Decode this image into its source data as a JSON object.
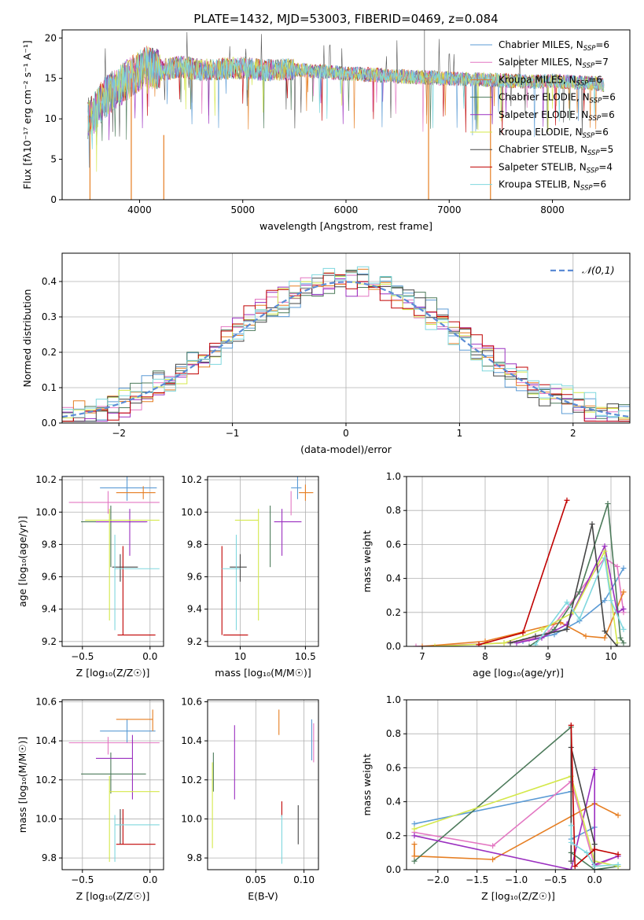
{
  "figure_title": "PLATE=1432, MJD=53003, FIBERID=0469, z=0.084",
  "legend": [
    {
      "label": "Chabrier MILES, N",
      "sub": "SSP",
      "tail": "=6",
      "color": "#5b9bd5"
    },
    {
      "label": "Salpeter MILES, N",
      "sub": "SSP",
      "tail": "=7",
      "color": "#e377c2"
    },
    {
      "label": "Kroupa MILES, N",
      "sub": "SSP",
      "tail": "=6",
      "color": "#e67e22"
    },
    {
      "label": "Chabrier ELODIE, N",
      "sub": "SSP",
      "tail": "=6",
      "color": "#4c7a5a"
    },
    {
      "label": "Salpeter ELODIE, N",
      "sub": "SSP",
      "tail": "=6",
      "color": "#9b30c0"
    },
    {
      "label": "Kroupa ELODIE, N",
      "sub": "SSP",
      "tail": "=6",
      "color": "#d4e84a"
    },
    {
      "label": "Chabrier STELIB, N",
      "sub": "SSP",
      "tail": "=5",
      "color": "#444444"
    },
    {
      "label": "Salpeter STELIB, N",
      "sub": "SSP",
      "tail": "=4",
      "color": "#c00000"
    },
    {
      "label": "Kroupa STELIB, N",
      "sub": "SSP",
      "tail": "=6",
      "color": "#7fd7de"
    }
  ],
  "chart_data": [
    {
      "id": "spectrum",
      "type": "line",
      "xlabel": "wavelength [Angstrom, rest frame]",
      "ylabel": "Flux [fλ10⁻¹⁷ erg cm⁻² s⁻¹ A⁻¹]",
      "xlim": [
        3250,
        8750
      ],
      "ylim": [
        0,
        21
      ],
      "xticks": [
        4000,
        5000,
        6000,
        7000,
        8000
      ],
      "yticks": [
        0,
        5,
        10,
        15,
        20
      ],
      "grid": false,
      "legend_position": "right",
      "flux_anchor_x": [
        3500,
        3550,
        3650,
        3750,
        3850,
        3950,
        4050,
        4200,
        4400,
        4600,
        4800,
        5000,
        5200,
        5400,
        5600,
        5800,
        6000,
        6200,
        6400,
        6600,
        6800,
        7000,
        7200,
        7400,
        7600,
        7800,
        8000,
        8200,
        8400,
        8500
      ],
      "flux_anchor_y": [
        10.0,
        10.5,
        12.5,
        13.5,
        14.5,
        15.5,
        16.5,
        16.0,
        16.5,
        16.0,
        16.2,
        16.3,
        16.0,
        16.1,
        16.0,
        15.8,
        15.6,
        15.5,
        15.3,
        15.2,
        15.1,
        15.0,
        14.9,
        14.8,
        14.7,
        14.6,
        14.7,
        14.5,
        14.4,
        14.2
      ],
      "drop_lines": [
        {
          "x": 3520,
          "y0": 0,
          "y1": 10
        },
        {
          "x": 3920,
          "y0": 0,
          "y1": 15
        },
        {
          "x": 4235,
          "y0": 0,
          "y1": 8
        },
        {
          "x": 6800,
          "y0": 0,
          "y1": 15
        },
        {
          "x": 7400,
          "y0": 0,
          "y1": 14
        }
      ]
    },
    {
      "id": "residual-histogram",
      "type": "bar",
      "xlabel": "(data-model)/error",
      "ylabel": "Normed distribution",
      "xlim": [
        -2.5,
        2.5
      ],
      "ylim": [
        0,
        0.48
      ],
      "xticks": [
        -2,
        -1,
        0,
        1,
        2
      ],
      "yticks": [
        0.0,
        0.1,
        0.2,
        0.3,
        0.4
      ],
      "grid": true,
      "bin_width": 0.1,
      "reference_curve": {
        "name": "𝒩(0,1)",
        "color": "#5b8bd5"
      }
    },
    {
      "id": "age-vs-Z",
      "type": "scatter",
      "xlabel": "Z [log₁₀(Z/Z☉)]",
      "ylabel": "age  [log₁₀(age/yr)]",
      "xlim": [
        -0.65,
        0.1
      ],
      "ylim": [
        9.17,
        10.22
      ],
      "xticks": [
        -0.5,
        0.0
      ],
      "xtick_labels": [
        "−0.5",
        "0.0"
      ],
      "yticks": [
        9.2,
        9.4,
        9.6,
        9.8,
        10.0,
        10.2
      ],
      "grid": true,
      "points": [
        {
          "c": 0,
          "x": -0.17,
          "xe": [
            -0.37,
            0.05
          ],
          "y": 10.15,
          "ye": [
            10.07,
            10.22
          ]
        },
        {
          "c": 1,
          "x": -0.31,
          "xe": [
            -0.6,
            0.07
          ],
          "y": 10.06,
          "ye": [
            9.99,
            10.13
          ]
        },
        {
          "c": 2,
          "x": -0.05,
          "xe": [
            -0.25,
            0.04
          ],
          "y": 10.12,
          "ye": [
            10.08,
            10.16
          ]
        },
        {
          "c": 3,
          "x": -0.29,
          "xe": [
            -0.51,
            -0.03
          ],
          "y": 9.94,
          "ye": [
            9.66,
            10.04
          ]
        },
        {
          "c": 4,
          "x": -0.15,
          "xe": [
            -0.4,
            -0.02
          ],
          "y": 9.94,
          "ye": [
            9.73,
            10.02
          ]
        },
        {
          "c": 5,
          "x": -0.3,
          "xe": [
            -0.48,
            0.07
          ],
          "y": 9.95,
          "ye": [
            9.33,
            10.02
          ]
        },
        {
          "c": 6,
          "x": -0.22,
          "xe": [
            -0.28,
            -0.09
          ],
          "y": 9.66,
          "ye": [
            9.57,
            9.74
          ]
        },
        {
          "c": 7,
          "x": -0.2,
          "xe": [
            -0.24,
            0.04
          ],
          "y": 9.24,
          "ye": [
            9.24,
            9.79
          ]
        },
        {
          "c": 8,
          "x": -0.26,
          "xe": [
            -0.26,
            0.07
          ],
          "y": 9.65,
          "ye": [
            9.27,
            9.86
          ]
        }
      ]
    },
    {
      "id": "age-vs-mass",
      "type": "scatter",
      "xlabel": "mass [log₁₀(M/M☉)]",
      "ylabel": "",
      "xlim": [
        9.75,
        10.6
      ],
      "ylim": [
        9.17,
        10.22
      ],
      "xticks": [
        10.0,
        10.5
      ],
      "yticks": [
        9.2,
        9.4,
        9.6,
        9.8,
        10.0,
        10.2
      ],
      "grid": true,
      "points": [
        {
          "c": 0,
          "x": 10.44,
          "xe": [
            10.39,
            10.47
          ],
          "y": 10.15,
          "ye": [
            10.08,
            10.22
          ]
        },
        {
          "c": 1,
          "x": 10.39,
          "xe": [
            10.39,
            10.39
          ],
          "y": 10.06,
          "ye": [
            9.98,
            10.13
          ]
        },
        {
          "c": 2,
          "x": 10.5,
          "xe": [
            10.45,
            10.56
          ],
          "y": 10.12,
          "ye": [
            10.07,
            10.17
          ]
        },
        {
          "c": 3,
          "x": 10.23,
          "xe": [
            10.23,
            10.23
          ],
          "y": 9.94,
          "ye": [
            9.66,
            10.04
          ]
        },
        {
          "c": 4,
          "x": 10.32,
          "xe": [
            10.26,
            10.47
          ],
          "y": 9.94,
          "ye": [
            9.73,
            10.02
          ]
        },
        {
          "c": 5,
          "x": 10.14,
          "xe": [
            9.96,
            10.14
          ],
          "y": 9.95,
          "ye": [
            9.33,
            10.02
          ]
        },
        {
          "c": 6,
          "x": 10.0,
          "xe": [
            9.92,
            10.05
          ],
          "y": 9.66,
          "ye": [
            9.57,
            9.74
          ]
        },
        {
          "c": 7,
          "x": 9.86,
          "xe": [
            9.87,
            10.06
          ],
          "y": 9.24,
          "ye": [
            9.24,
            9.79
          ]
        },
        {
          "c": 8,
          "x": 9.97,
          "xe": [
            9.86,
            10.0
          ],
          "y": 9.65,
          "ye": [
            9.27,
            9.86
          ]
        }
      ]
    },
    {
      "id": "mass-weight-vs-age",
      "type": "line",
      "xlabel": "age  [log₁₀(age/yr)]",
      "ylabel": "mass weight",
      "xlim": [
        6.75,
        10.3
      ],
      "ylim": [
        0,
        1.0
      ],
      "xticks": [
        7,
        8,
        9,
        10
      ],
      "yticks": [
        0.0,
        0.2,
        0.4,
        0.6,
        0.8,
        1.0
      ],
      "grid": true,
      "series": [
        {
          "c": 0,
          "x": [
            8.6,
            9.1,
            9.5,
            9.9,
            10.2
          ],
          "y": [
            0.03,
            0.07,
            0.15,
            0.27,
            0.46
          ]
        },
        {
          "c": 1,
          "x": [
            6.9,
            8.3,
            8.7,
            9.0,
            9.9,
            10.1,
            10.2
          ],
          "y": [
            0.0,
            0.02,
            0.04,
            0.08,
            0.52,
            0.47,
            0.2
          ]
        },
        {
          "c": 2,
          "x": [
            7.0,
            8.0,
            9.2,
            9.6,
            9.9,
            10.2
          ],
          "y": [
            0.0,
            0.03,
            0.14,
            0.06,
            0.05,
            0.32
          ]
        },
        {
          "c": 3,
          "x": [
            8.7,
            9.1,
            9.5,
            9.95,
            10.15,
            10.2
          ],
          "y": [
            0.0,
            0.1,
            0.32,
            0.84,
            0.05,
            0.02
          ]
        },
        {
          "c": 4,
          "x": [
            8.5,
            8.9,
            9.3,
            9.9,
            10.1,
            10.2
          ],
          "y": [
            0.02,
            0.05,
            0.13,
            0.59,
            0.2,
            0.22
          ]
        },
        {
          "c": 5,
          "x": [
            7.2,
            8.3,
            8.9,
            9.4,
            9.9,
            10.1
          ],
          "y": [
            0.0,
            0.02,
            0.1,
            0.2,
            0.56,
            0.02
          ]
        },
        {
          "c": 6,
          "x": [
            8.4,
            8.8,
            9.3,
            9.7,
            9.9,
            10.1
          ],
          "y": [
            0.02,
            0.06,
            0.1,
            0.72,
            0.09,
            0.0
          ]
        },
        {
          "c": 7,
          "x": [
            7.9,
            8.6,
            9.3
          ],
          "y": [
            0.01,
            0.08,
            0.86
          ]
        },
        {
          "c": 8,
          "x": [
            8.8,
            9.3,
            9.5,
            9.9,
            10.0,
            10.2
          ],
          "y": [
            0.01,
            0.26,
            0.16,
            0.52,
            0.27,
            0.1
          ]
        }
      ]
    },
    {
      "id": "mass-vs-Z",
      "type": "scatter",
      "xlabel": "Z [log₁₀(Z/Z☉)]",
      "ylabel": "mass [log₁₀(M/M☉)]",
      "xlim": [
        -0.65,
        0.1
      ],
      "ylim": [
        9.74,
        10.61
      ],
      "xticks": [
        -0.5,
        0.0
      ],
      "xtick_labels": [
        "−0.5",
        "0.0"
      ],
      "yticks": [
        9.8,
        10.0,
        10.2,
        10.4,
        10.6
      ],
      "grid": true,
      "points": [
        {
          "c": 0,
          "x": -0.17,
          "xe": [
            -0.37,
            0.04
          ],
          "y": 10.45,
          "ye": [
            10.39,
            10.51
          ]
        },
        {
          "c": 1,
          "x": -0.31,
          "xe": [
            -0.6,
            0.07
          ],
          "y": 10.39,
          "ye": [
            10.33,
            10.42
          ]
        },
        {
          "c": 2,
          "x": 0.02,
          "xe": [
            -0.25,
            0.02
          ],
          "y": 10.51,
          "ye": [
            10.45,
            10.56
          ]
        },
        {
          "c": 3,
          "x": -0.29,
          "xe": [
            -0.51,
            -0.03
          ],
          "y": 10.23,
          "ye": [
            10.13,
            10.34
          ]
        },
        {
          "c": 4,
          "x": -0.13,
          "xe": [
            -0.4,
            -0.13
          ],
          "y": 10.31,
          "ye": [
            10.1,
            10.43
          ]
        },
        {
          "c": 5,
          "x": -0.3,
          "xe": [
            -0.3,
            0.07
          ],
          "y": 10.14,
          "ye": [
            9.78,
            10.22
          ]
        },
        {
          "c": 6,
          "x": -0.22,
          "xe": [
            -0.22,
            -0.22
          ],
          "y": 10.0,
          "ye": [
            9.87,
            10.05
          ]
        },
        {
          "c": 7,
          "x": -0.2,
          "xe": [
            -0.25,
            0.04
          ],
          "y": 9.87,
          "ye": [
            9.87,
            10.05
          ]
        },
        {
          "c": 8,
          "x": -0.26,
          "xe": [
            -0.26,
            0.07
          ],
          "y": 9.97,
          "ye": [
            9.78,
            10.02
          ]
        }
      ]
    },
    {
      "id": "mass-vs-EBV",
      "type": "scatter",
      "xlabel": "E(B-V)",
      "ylabel": "",
      "xlim": [
        0.0,
        0.115
      ],
      "ylim": [
        9.74,
        10.61
      ],
      "xticks": [
        0.05,
        0.1
      ],
      "xtick_labels": [
        "0.05",
        "0.10"
      ],
      "yticks": [
        9.8,
        10.0,
        10.2,
        10.4,
        10.6
      ],
      "grid": true,
      "points": [
        {
          "c": 0,
          "x": 0.108,
          "xe": [
            0.108,
            0.108
          ],
          "y": 10.4,
          "ye": [
            10.3,
            10.51
          ]
        },
        {
          "c": 1,
          "x": 0.11,
          "xe": [
            0.11,
            0.11
          ],
          "y": 10.39,
          "ye": [
            10.29,
            10.49
          ]
        },
        {
          "c": 2,
          "x": 0.074,
          "xe": [
            0.074,
            0.074
          ],
          "y": 10.5,
          "ye": [
            10.43,
            10.56
          ]
        },
        {
          "c": 3,
          "x": 0.006,
          "xe": [
            0.006,
            0.006
          ],
          "y": 10.23,
          "ye": [
            10.14,
            10.34
          ]
        },
        {
          "c": 4,
          "x": 0.028,
          "xe": [
            0.028,
            0.028
          ],
          "y": 10.31,
          "ye": [
            10.1,
            10.48
          ]
        },
        {
          "c": 5,
          "x": 0.005,
          "xe": [
            0.005,
            0.005
          ],
          "y": 10.14,
          "ye": [
            9.85,
            10.29
          ]
        },
        {
          "c": 6,
          "x": 0.094,
          "xe": [
            0.094,
            0.094
          ],
          "y": 10.0,
          "ye": [
            9.87,
            10.07
          ]
        },
        {
          "c": 7,
          "x": 0.077,
          "xe": [
            0.077,
            0.077
          ],
          "y": 10.05,
          "ye": [
            10.01,
            10.09
          ]
        },
        {
          "c": 8,
          "x": 0.077,
          "xe": [
            0.077,
            0.077
          ],
          "y": 9.97,
          "ye": [
            9.77,
            10.02
          ]
        }
      ]
    },
    {
      "id": "mass-weight-vs-Z",
      "type": "line",
      "xlabel": "Z [log₁₀(Z/Z☉)]",
      "ylabel": "mass weight",
      "xlim": [
        -2.4,
        0.45
      ],
      "ylim": [
        0,
        1.0
      ],
      "xticks": [
        -2.0,
        -1.5,
        -1.0,
        -0.5,
        0.0
      ],
      "xtick_labels": [
        "−2.0",
        "−1.5",
        "−1.0",
        "−0.5",
        "0.0"
      ],
      "yticks": [
        0.0,
        0.2,
        0.4,
        0.6,
        0.8,
        1.0
      ],
      "grid": true,
      "series": [
        {
          "c": 0,
          "x": [
            -2.3,
            -0.3,
            -0.3,
            0.0,
            0.0
          ],
          "y": [
            0.27,
            0.46,
            0.18,
            0.25,
            0.03
          ]
        },
        {
          "c": 1,
          "x": [
            -2.3,
            -1.3,
            -0.3,
            0.0,
            0.3
          ],
          "y": [
            0.22,
            0.14,
            0.52,
            0.02,
            0.08
          ]
        },
        {
          "c": 2,
          "x": [
            -2.3,
            -2.3,
            -1.3,
            0.0,
            0.3
          ],
          "y": [
            0.15,
            0.08,
            0.06,
            0.39,
            0.32
          ]
        },
        {
          "c": 3,
          "x": [
            -2.3,
            -0.3,
            -0.3,
            0.0,
            0.3
          ],
          "y": [
            0.05,
            0.84,
            0.1,
            0.0,
            0.02
          ]
        },
        {
          "c": 4,
          "x": [
            -2.3,
            -0.3,
            0.0,
            0.0,
            0.3
          ],
          "y": [
            0.2,
            0.0,
            0.59,
            0.03,
            0.08
          ]
        },
        {
          "c": 5,
          "x": [
            -2.3,
            -0.3,
            0.0,
            0.3
          ],
          "y": [
            0.24,
            0.55,
            0.05,
            0.02
          ]
        },
        {
          "c": 6,
          "x": [
            -0.3,
            -0.3,
            0.0,
            0.0
          ],
          "y": [
            0.05,
            0.72,
            0.15,
            0.0
          ]
        },
        {
          "c": 7,
          "x": [
            -0.3,
            -0.25,
            0.0,
            0.3
          ],
          "y": [
            0.85,
            0.02,
            0.12,
            0.09
          ]
        },
        {
          "c": 8,
          "x": [
            -0.3,
            -0.3,
            -0.1,
            0.0,
            0.3
          ],
          "y": [
            0.26,
            0.16,
            0.1,
            0.02,
            0.03
          ]
        }
      ]
    }
  ]
}
